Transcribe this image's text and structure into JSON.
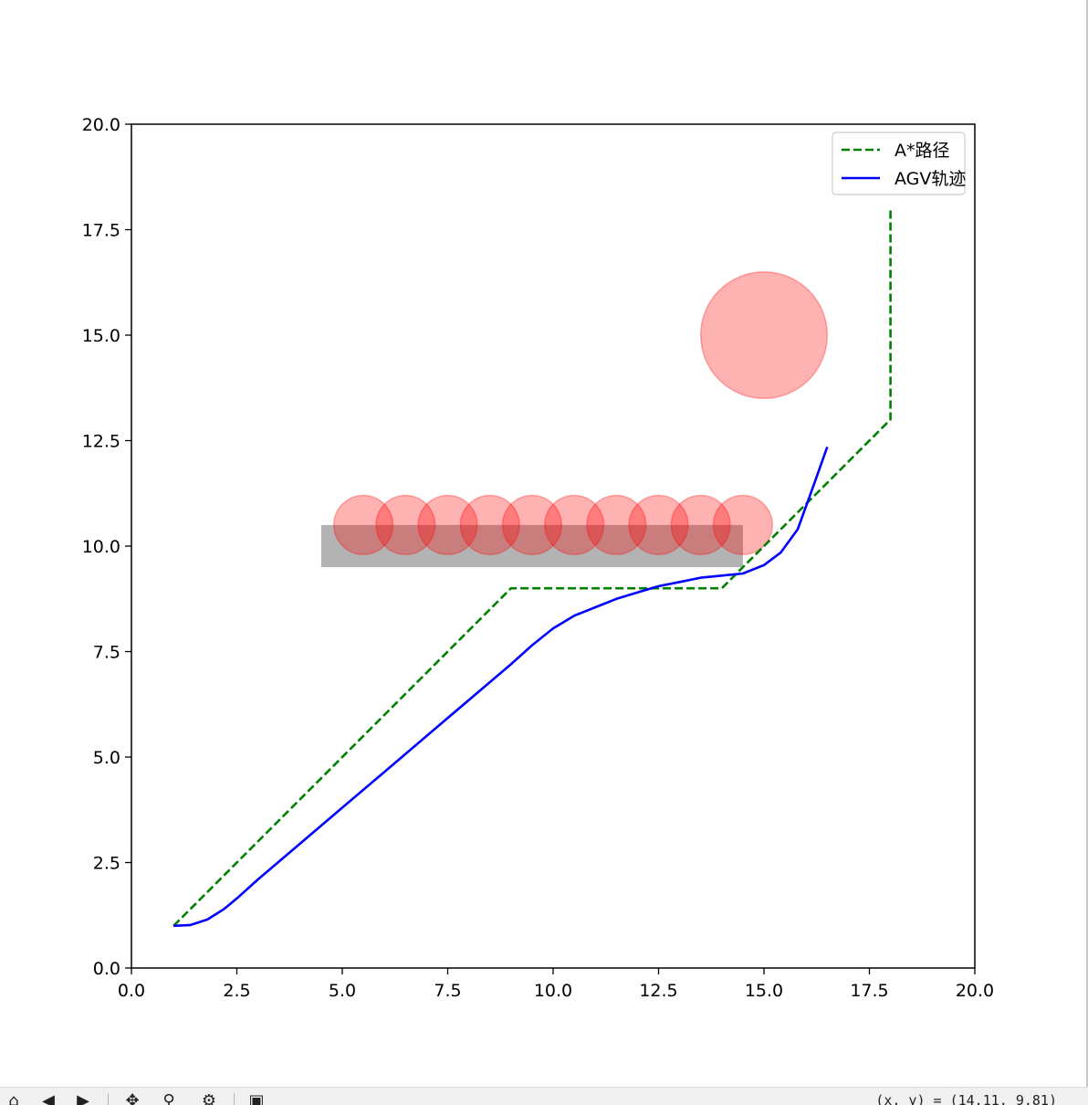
{
  "chart_data": {
    "type": "line",
    "xlim": [
      0,
      20
    ],
    "ylim": [
      0,
      20
    ],
    "grid": false,
    "legend_position": "top-right",
    "x_ticks": [
      "0.0",
      "2.5",
      "5.0",
      "7.5",
      "10.0",
      "12.5",
      "15.0",
      "17.5",
      "20.0"
    ],
    "y_ticks": [
      "0.0",
      "2.5",
      "5.0",
      "7.5",
      "10.0",
      "12.5",
      "15.0",
      "17.5",
      "20.0"
    ],
    "series": [
      {
        "name": "A*路径",
        "style": "dashed",
        "color": "#008000",
        "x": [
          1,
          9,
          14,
          18,
          18
        ],
        "y": [
          1,
          9,
          9,
          13,
          18
        ]
      },
      {
        "name": "AGV轨迹",
        "style": "solid",
        "color": "#0000ff",
        "x": [
          1.0,
          1.4,
          1.8,
          2.2,
          2.5,
          3.0,
          4.0,
          5.0,
          6.0,
          7.0,
          8.0,
          9.0,
          9.5,
          10.0,
          10.5,
          11.0,
          11.5,
          12.0,
          12.5,
          13.0,
          13.5,
          14.0,
          14.5,
          15.0,
          15.4,
          15.8,
          16.0,
          16.2,
          16.5
        ],
        "y": [
          1.0,
          1.02,
          1.15,
          1.4,
          1.65,
          2.1,
          2.95,
          3.8,
          4.65,
          5.5,
          6.35,
          7.2,
          7.65,
          8.05,
          8.35,
          8.55,
          8.75,
          8.9,
          9.05,
          9.15,
          9.25,
          9.3,
          9.35,
          9.55,
          9.85,
          10.4,
          10.95,
          11.5,
          12.35
        ]
      }
    ],
    "obstacles": {
      "rectangle": {
        "x_range": [
          4.5,
          14.5
        ],
        "y_range": [
          9.5,
          10.5
        ],
        "color": "#808080"
      },
      "circles": [
        {
          "center": [
            5.5,
            10.5
          ],
          "radius": 0.7
        },
        {
          "center": [
            6.5,
            10.5
          ],
          "radius": 0.7
        },
        {
          "center": [
            7.5,
            10.5
          ],
          "radius": 0.7
        },
        {
          "center": [
            8.5,
            10.5
          ],
          "radius": 0.7
        },
        {
          "center": [
            9.5,
            10.5
          ],
          "radius": 0.7
        },
        {
          "center": [
            10.5,
            10.5
          ],
          "radius": 0.7
        },
        {
          "center": [
            11.5,
            10.5
          ],
          "radius": 0.7
        },
        {
          "center": [
            12.5,
            10.5
          ],
          "radius": 0.7
        },
        {
          "center": [
            13.5,
            10.5
          ],
          "radius": 0.7
        },
        {
          "center": [
            14.5,
            10.5
          ],
          "radius": 0.7
        },
        {
          "center": [
            15.0,
            15.0
          ],
          "radius": 1.5
        }
      ],
      "circle_color": "#ff0000"
    }
  },
  "toolbar": {
    "icons": [
      "home-icon",
      "back-icon",
      "forward-icon",
      "pan-icon",
      "zoom-icon",
      "configure-icon",
      "save-icon"
    ],
    "coordinate_readout": "(x, y) = (14.11, 9.81)"
  }
}
